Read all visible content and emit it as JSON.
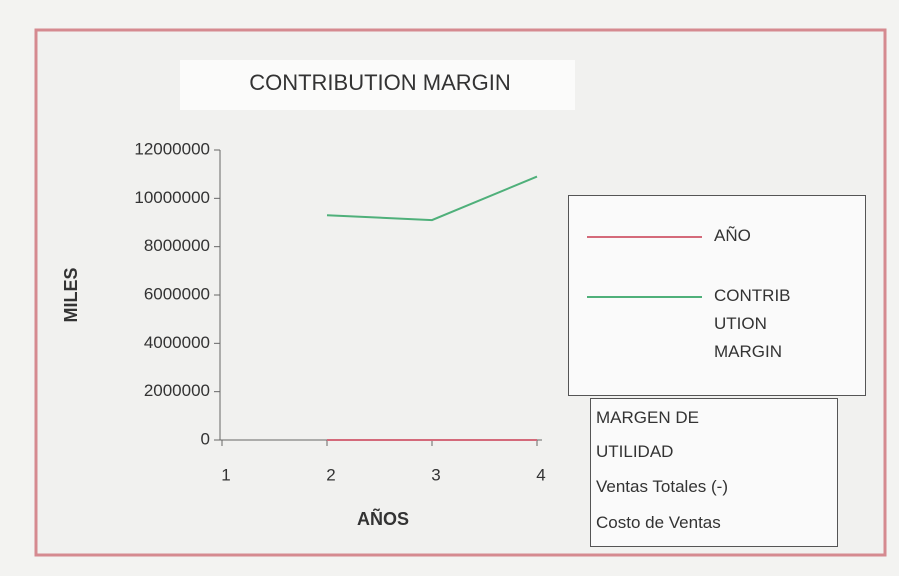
{
  "chart_data": {
    "type": "line",
    "title": "CONTRIBUTION MARGIN",
    "x_label": "AÑOS",
    "y_label": "MILES",
    "x": [
      1,
      2,
      3,
      4
    ],
    "series": [
      {
        "name": "AÑO",
        "color": "#d46a7a",
        "values": [
          null,
          0,
          0,
          0
        ]
      },
      {
        "name": "CONTRIBUTION MARGIN",
        "color": "#4fb07a",
        "values": [
          null,
          9300000,
          9100000,
          10900000
        ]
      }
    ],
    "xlim": [
      1,
      4
    ],
    "xticks": [
      1,
      2,
      3,
      4
    ],
    "ylim": [
      0,
      12000000
    ],
    "yticks": [
      0,
      2000000,
      4000000,
      6000000,
      8000000,
      10000000,
      12000000
    ],
    "annotation": [
      "MARGEN DE UTILIDAD",
      "Ventas Totales (-)",
      "Costo de Ventas"
    ]
  }
}
